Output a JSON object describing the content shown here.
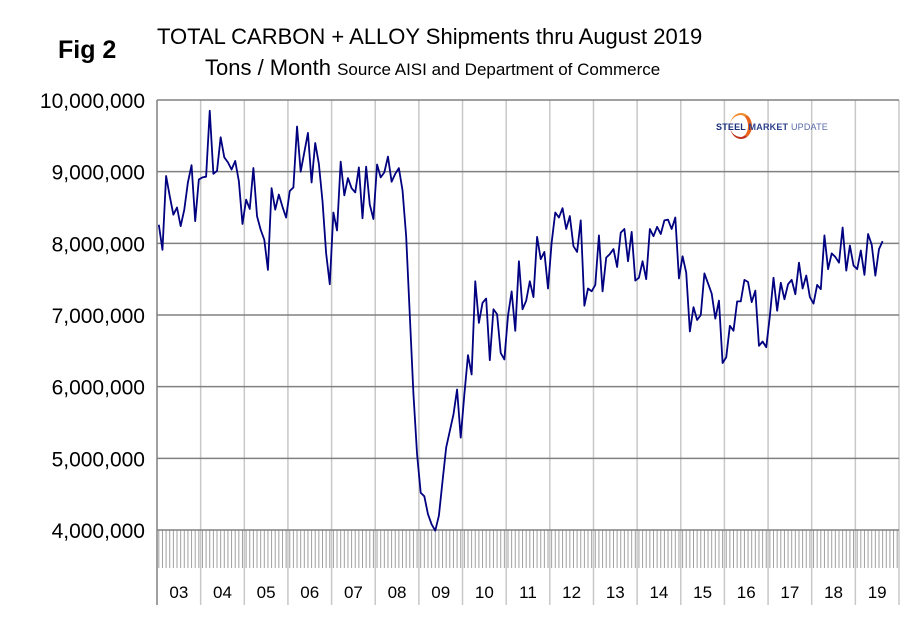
{
  "figure_label": "Fig 2",
  "logo_text": "STEEL MARKET UPDATE",
  "colors": {
    "line": "#000080",
    "grid_h": "#808080",
    "grid_v": "#c8c8c8",
    "logo_orange": "#e8641e",
    "logo_blue": "#1b2f7a"
  },
  "chart_data": {
    "type": "line",
    "title": "TOTAL CARBON + ALLOY Shipments thru August 2019",
    "subtitle_main": "Tons / Month",
    "subtitle_source": "Source AISI and Department of Commerce",
    "ylim": [
      4000000,
      10000000
    ],
    "yticks": [
      4000000,
      5000000,
      6000000,
      7000000,
      8000000,
      9000000,
      10000000
    ],
    "ytick_labels": [
      "4,000,000",
      "5,000,000",
      "6,000,000",
      "7,000,000",
      "8,000,000",
      "9,000,000",
      "10,000,000"
    ],
    "xtick_labels": [
      "03",
      "04",
      "05",
      "06",
      "07",
      "08",
      "09",
      "10",
      "11",
      "12",
      "13",
      "14",
      "15",
      "16",
      "17",
      "18",
      "19"
    ],
    "x_start": "2003-01",
    "x_end": "2019-08",
    "grid": true,
    "series": [
      {
        "values_millions": [
          8.26,
          7.91,
          8.94,
          8.66,
          8.4,
          8.5,
          8.24,
          8.47,
          8.85,
          9.09,
          8.31,
          8.89,
          8.92,
          8.93,
          9.85,
          8.97,
          9.01,
          9.48,
          9.2,
          9.13,
          9.03,
          9.15,
          8.87,
          8.27,
          8.61,
          8.48,
          9.05,
          8.38,
          8.19,
          8.05,
          7.63,
          8.77,
          8.47,
          8.68,
          8.51,
          8.36,
          8.73,
          8.78,
          9.63,
          9.0,
          9.27,
          9.54,
          8.85,
          9.4,
          9.11,
          8.59,
          7.86,
          7.43,
          8.43,
          8.18,
          9.14,
          8.67,
          8.91,
          8.77,
          8.71,
          9.06,
          8.35,
          9.07,
          8.54,
          8.34,
          9.1,
          8.92,
          8.99,
          9.21,
          8.86,
          8.97,
          9.05,
          8.74,
          8.1,
          7.0,
          5.9,
          5.06,
          4.52,
          4.47,
          4.22,
          4.08,
          3.99,
          4.2,
          4.68,
          5.15,
          5.38,
          5.61,
          5.96,
          5.29,
          5.89,
          6.44,
          6.17,
          7.47,
          6.89,
          7.17,
          7.23,
          6.37,
          7.08,
          7.01,
          6.47,
          6.38,
          6.99,
          7.33,
          6.78,
          7.75,
          7.08,
          7.2,
          7.47,
          7.25,
          8.09,
          7.78,
          7.88,
          7.37,
          8.01,
          8.43,
          8.36,
          8.49,
          8.2,
          8.38,
          7.96,
          7.88,
          8.32,
          7.13,
          7.37,
          7.33,
          7.42,
          8.11,
          7.33,
          7.8,
          7.85,
          7.92,
          7.67,
          8.15,
          8.2,
          7.75,
          8.16,
          7.48,
          7.52,
          7.75,
          7.5,
          8.2,
          8.1,
          8.23,
          8.13,
          8.32,
          8.33,
          8.2,
          8.36,
          7.51,
          7.82,
          7.59,
          6.77,
          7.11,
          6.93,
          7.0,
          7.58,
          7.44,
          7.3,
          6.95,
          7.2,
          6.33,
          6.41,
          6.85,
          6.78,
          7.19,
          7.19,
          7.49,
          7.46,
          7.18,
          7.34,
          6.57,
          6.63,
          6.55,
          6.99,
          7.52,
          7.06,
          7.45,
          7.22,
          7.43,
          7.49,
          7.29,
          7.73,
          7.37,
          7.55,
          7.25,
          7.16,
          7.42,
          7.36,
          8.11,
          7.64,
          7.86,
          7.81,
          7.73,
          8.22,
          7.62,
          7.97,
          7.69,
          7.64,
          7.9,
          7.56,
          8.13,
          7.98,
          7.55,
          7.92,
          8.03
        ]
      }
    ]
  }
}
